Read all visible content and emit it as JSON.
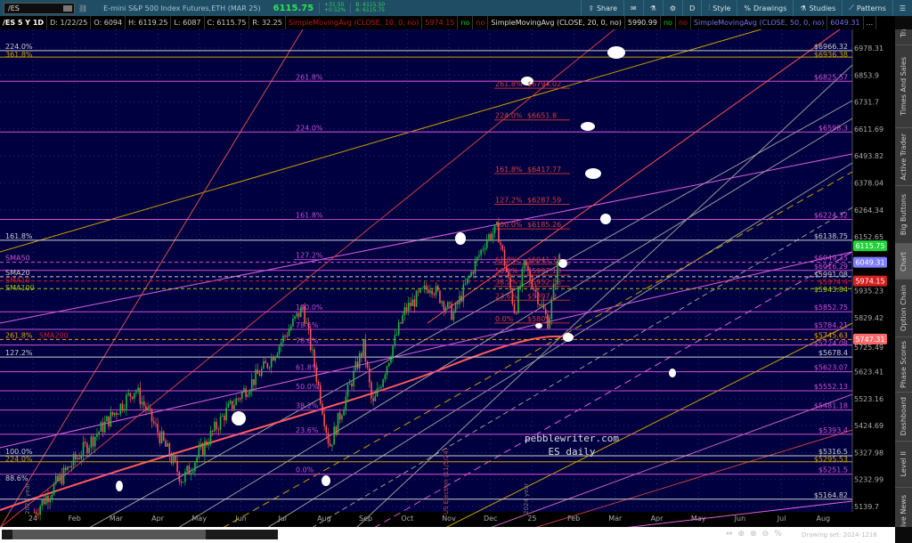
{
  "toolbar": {
    "symbol": "/ES",
    "description": "E-mini S&P 500 Index Futures,ETH (MAR 25)",
    "last": "6115.75",
    "change": "+31.50",
    "change_pct": "+0.52%",
    "bid": "B: 6115.50",
    "ask": "A: 6115.75",
    "buttons": [
      {
        "label": "Share",
        "icon": "share-icon"
      },
      {
        "label": "",
        "icon": "message-icon"
      },
      {
        "label": "",
        "icon": "flask-icon"
      },
      {
        "label": "",
        "icon": "gear-icon"
      },
      {
        "label": "D",
        "icon": ""
      },
      {
        "label": "Style",
        "icon": "candles-icon"
      },
      {
        "label": "Drawings",
        "icon": "percent-icon"
      },
      {
        "label": "Studies",
        "icon": "flask-icon"
      },
      {
        "label": "Patterns",
        "icon": "pattern-icon"
      },
      {
        "label": "",
        "icon": "menu-icon"
      }
    ]
  },
  "infobar": {
    "period": "/ES 5 Y 1D",
    "date": "D: 1/22/25",
    "open": "O: 6094",
    "high": "H: 6119.25",
    "low": "L: 6087",
    "close": "C: 6115.75",
    "range": "R: 32.25",
    "sma10": "SimpleMovingAvg (CLOSE, 10, 0, no)",
    "sma10_val": "5974.15",
    "sma10_no": "no",
    "sma20_no1": "no",
    "sma20": "SimpleMovingAvg (CLOSE, 20, 0, no)",
    "sma20_val": "5990.99",
    "sma20_no": "no",
    "sma50_no1": "no",
    "sma50": "SimpleMovingAvg (CLOSE, 50, 0, no)",
    "sma50_val": "6049.31",
    "more": "..."
  },
  "sidebar": {
    "tabs": [
      "Trade",
      "Times And Sales",
      "Active Trader",
      "Big Buttons",
      "Chart",
      "Option Chain",
      "Phase Scores",
      "Dashboard",
      "Level II",
      "Live News"
    ],
    "active": "Chart"
  },
  "status": {
    "drawing_set": "Drawing set: 2024-1216"
  },
  "chart_data": {
    "type": "candlestick",
    "symbol": "/ES",
    "aggregation": "1D",
    "scale": "log",
    "ylim": [
      5139.7,
      6978.31
    ],
    "y_ticks": [
      "6978.31",
      "6853.9",
      "6731.7",
      "6611.69",
      "6493.82",
      "6378.04",
      "6264.34",
      "6152.65",
      "5935.23",
      "5829.42",
      "5725.49",
      "5623.41",
      "5523.16",
      "5424.69",
      "5327.98",
      "5232.99",
      "5139.7"
    ],
    "x_ticks": [
      "24",
      "Feb",
      "Mar",
      "Apr",
      "May",
      "Jun",
      "Jul",
      "Aug",
      "Sep",
      "Oct",
      "Nov",
      "Dec",
      "25",
      "Feb",
      "Mar",
      "Apr",
      "May",
      "Jun",
      "Jul",
      "Aug"
    ],
    "approx_closes": [
      [
        "2024-01-02",
        5120
      ],
      [
        "2024-02-01",
        5300
      ],
      [
        "2024-03-15",
        5560
      ],
      [
        "2024-04-19",
        5230
      ],
      [
        "2024-05-20",
        5470
      ],
      [
        "2024-06-20",
        5650
      ],
      [
        "2024-07-16",
        5870
      ],
      [
        "2024-08-05",
        5350
      ],
      [
        "2024-08-30",
        5720
      ],
      [
        "2024-09-06",
        5490
      ],
      [
        "2024-09-30",
        5860
      ],
      [
        "2024-10-18",
        5960
      ],
      [
        "2024-11-04",
        5840
      ],
      [
        "2024-11-29",
        6150
      ],
      [
        "2024-12-06",
        6185
      ],
      [
        "2024-12-19",
        5850
      ],
      [
        "2024-12-26",
        6040
      ],
      [
        "2025-01-13",
        5809
      ],
      [
        "2025-01-22",
        6115.75
      ]
    ],
    "price_tags": [
      {
        "value": "6115.75",
        "color": "#1fd23a"
      },
      {
        "value": "6049.31",
        "color": "#7d7dff"
      },
      {
        "value": "5974.15",
        "color": "#d42020"
      },
      {
        "value": "5747.31",
        "color": "#ff6b6b"
      }
    ],
    "levels_right": [
      {
        "p": 6966.32,
        "label": "$6966.32",
        "color": "#cccccc"
      },
      {
        "p": 6936.38,
        "label": "$6936.38",
        "color": "#c8a000"
      },
      {
        "p": 6825.57,
        "label": "$6825.57",
        "color": "#d050d0"
      },
      {
        "p": 6598.3,
        "label": "$6598.3",
        "color": "#d050d0"
      },
      {
        "p": 6224.32,
        "label": "$6224.32",
        "color": "#d050d0"
      },
      {
        "p": 6138.75,
        "label": "$6138.75",
        "color": "#cccccc"
      },
      {
        "p": 6049.35,
        "label": "$6049.35",
        "color": "#d050d0",
        "dash": true
      },
      {
        "p": 6016.29,
        "label": "$6016.29",
        "color": "#d050d0"
      },
      {
        "p": 5991.08,
        "label": "$5991.08",
        "color": "#cccccc",
        "dash": true
      },
      {
        "p": 5974.4,
        "label": "$5974.4",
        "color": "#d42020",
        "dash": true
      },
      {
        "p": 5943.84,
        "label": "$5943.84",
        "color": "#a8c800",
        "dash": true
      },
      {
        "p": 5852.75,
        "label": "$5852.75",
        "color": "#d050d0"
      },
      {
        "p": 5784.21,
        "label": "$5784.21",
        "color": "#d050d0"
      },
      {
        "p": 5745.63,
        "label": "$5745.63",
        "color": "#f0a000",
        "dash": true
      },
      {
        "p": 5724.08,
        "label": "$5724.08",
        "color": "#d050d0"
      },
      {
        "p": 5678.4,
        "label": "$5678.4",
        "color": "#cccccc"
      },
      {
        "p": 5623.07,
        "label": "$5623.07",
        "color": "#d050d0"
      },
      {
        "p": 5552.13,
        "label": "$5552.13",
        "color": "#d050d0"
      },
      {
        "p": 5481.18,
        "label": "$5481.18",
        "color": "#d050d0"
      },
      {
        "p": 5393.4,
        "label": "$5393.4",
        "color": "#d050d0"
      },
      {
        "p": 5316.5,
        "label": "$5316.5",
        "color": "#cccccc"
      },
      {
        "p": 5295.53,
        "label": "$5295.53",
        "color": "#c8a000"
      },
      {
        "p": 5251.5,
        "label": "$5251.5",
        "color": "#d050d0"
      },
      {
        "p": 5164.82,
        "label": "$5164.82",
        "color": "#cccccc"
      }
    ],
    "levels_left": [
      {
        "p": 6966.32,
        "label": "224.0%",
        "color": "#cccccc"
      },
      {
        "p": 6936.38,
        "label": "361.8%",
        "color": "#c8a000"
      },
      {
        "p": 6138.75,
        "label": "161.8%",
        "color": "#cccccc"
      },
      {
        "p": 6049.35,
        "label": "SMA50",
        "color": "#d050d0"
      },
      {
        "p": 5991.08,
        "label": "SMA20",
        "color": "#cccccc"
      },
      {
        "p": 5974.4,
        "label": "SMA10",
        "color": "#d42020"
      },
      {
        "p": 5943.84,
        "label": "SMA100",
        "color": "#a8c800"
      },
      {
        "p": 5745.63,
        "label": "SMA200",
        "color": "#d42020"
      },
      {
        "p": 5745.63,
        "label": "261.8%",
        "color": "#f0a000"
      },
      {
        "p": 5678.4,
        "label": "127.2%",
        "color": "#cccccc"
      },
      {
        "p": 5316.5,
        "label": "100.0%",
        "color": "#cccccc"
      },
      {
        "p": 5295.53,
        "label": "224.0%",
        "color": "#c8a000"
      },
      {
        "p": 5164.82,
        "label": "88.6%",
        "color": "#cccccc"
      }
    ],
    "fib_mid": [
      [
        "261.8%",
        6825.57
      ],
      [
        "224.0%",
        6598.3
      ],
      [
        "161.8%",
        6224.32
      ],
      [
        "127.2%",
        6060
      ],
      [
        "100.0%",
        5852.75
      ],
      [
        "78.6%",
        5784.21
      ],
      [
        "78.6%",
        5724.08
      ],
      [
        "61.8%",
        5623.07
      ],
      [
        "50.0%",
        5552.13
      ],
      [
        "38.2%",
        5481.18
      ],
      [
        "23.6%",
        5393.4
      ],
      [
        "0.0%",
        5251.5
      ]
    ],
    "fib_red": [
      [
        "261.8%",
        "$6794.02",
        6794.02
      ],
      [
        "224.0%",
        "$6651.8",
        6651.8
      ],
      [
        "161.8%",
        "$6417.77",
        6417.77
      ],
      [
        "127.2%",
        "$6287.59",
        6287.59
      ],
      [
        "100.0%",
        "$6185.26",
        6185.26
      ],
      [
        "61.8%",
        "$6041.72",
        6041.72
      ],
      [
        "50.0%",
        "$5997.13",
        5997.13
      ],
      [
        "38.2%",
        "$5952.53",
        5952.53
      ],
      [
        "23.6%",
        "$5897.8",
        5897.8
      ],
      [
        "0.0%",
        "$5809",
        5809
      ]
    ],
    "annotations": [
      "US Election (11/5/24)",
      "2024 year",
      "2023 year"
    ],
    "watermark": [
      "pebblewriter.com",
      "ES daily"
    ]
  }
}
